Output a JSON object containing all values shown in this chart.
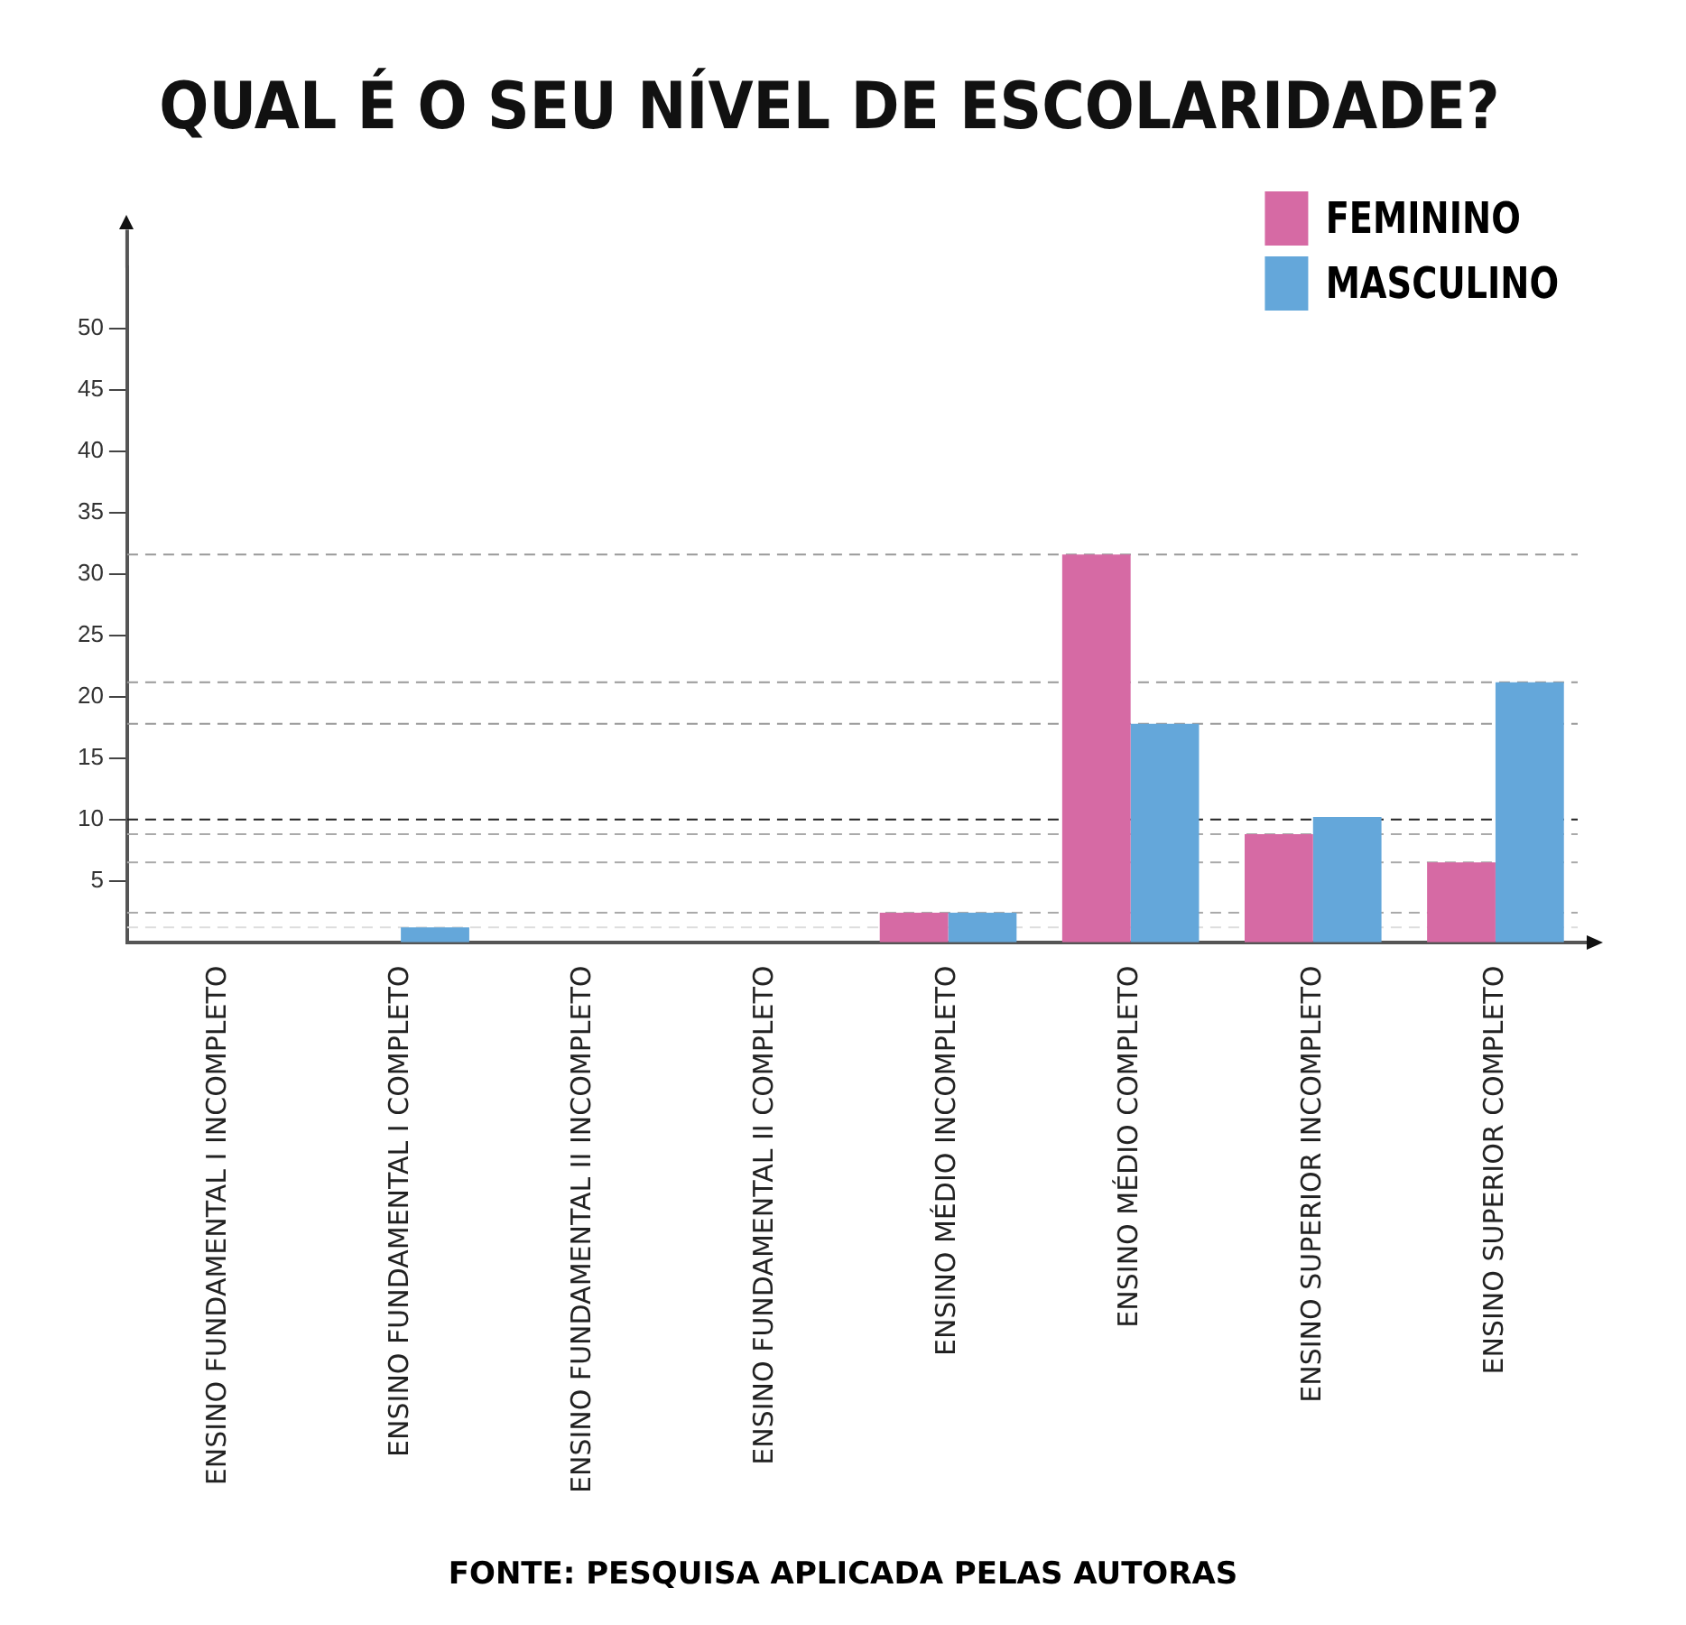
{
  "chart_data": {
    "type": "bar",
    "title": "QUAL É O SEU NÍVEL DE ESCOLARIDADE?",
    "categories": [
      "ENSINO FUNDAMENTAL I INCOMPLETO",
      "ENSINO FUNDAMENTAL I COMPLETO",
      "ENSINO FUNDAMENTAL II INCOMPLETO",
      "ENSINO FUNDAMENTAL II COMPLETO",
      "ENSINO MÉDIO INCOMPLETO",
      "ENSINO MÉDIO COMPLETO",
      "ENSINO SUPERIOR INCOMPLETO",
      "ENSINO SUPERIOR COMPLETO"
    ],
    "series": [
      {
        "name": "FEMININO",
        "color": "#d66aa4",
        "values": [
          0,
          0,
          0,
          0,
          2.4,
          31.6,
          8.8,
          6.5
        ]
      },
      {
        "name": "MASCULINO",
        "color": "#64a7da",
        "values": [
          0,
          1.2,
          0,
          0,
          2.4,
          17.8,
          10.2,
          21.2
        ]
      }
    ],
    "ylim": [
      0,
      55
    ],
    "yticks": [
      5,
      10,
      15,
      20,
      25,
      30,
      35,
      40,
      45,
      50
    ],
    "ref_lines": [
      {
        "axis": "y",
        "value": 31.6,
        "color": "#999999",
        "line_style": "dashed"
      },
      {
        "axis": "y",
        "value": 21.2,
        "color": "#999999",
        "line_style": "dashed"
      },
      {
        "axis": "y",
        "value": 17.8,
        "color": "#999999",
        "line_style": "dashed"
      },
      {
        "axis": "y",
        "value": 10,
        "color": "#222222",
        "line_style": "dashed"
      },
      {
        "axis": "y",
        "value": 8.8,
        "color": "#aaaaaa",
        "line_style": "dashed"
      },
      {
        "axis": "y",
        "value": 6.5,
        "color": "#aaaaaa",
        "line_style": "dashed"
      },
      {
        "axis": "y",
        "value": 2.4,
        "color": "#aaaaaa",
        "line_style": "dashed"
      },
      {
        "axis": "y",
        "value": 1.2,
        "color": "#dddddd",
        "line_style": "dashed"
      }
    ],
    "grid": false,
    "legend": "top right",
    "annotations": [
      "FONTE: PESQUISA APLICADA PELAS AUTORAS"
    ]
  }
}
